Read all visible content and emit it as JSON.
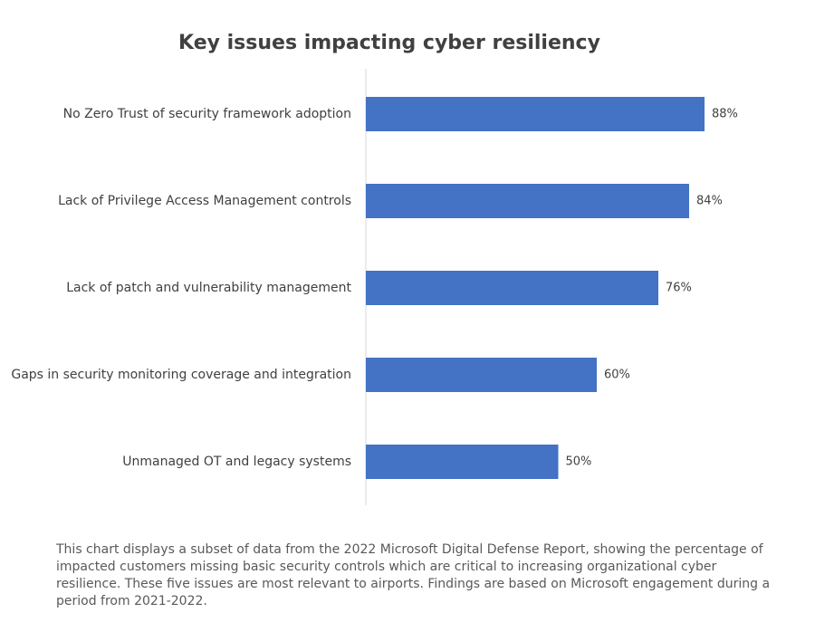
{
  "chart_data": {
    "type": "bar",
    "orientation": "horizontal",
    "title": "Key issues impacting cyber resiliency",
    "categories": [
      "No Zero Trust of security framework adoption",
      "Lack of Privilege Access Management controls",
      "Lack of patch and vulnerability management",
      "Gaps in security monitoring coverage and integration",
      "Unmanaged OT and legacy systems"
    ],
    "values": [
      88,
      84,
      76,
      60,
      50
    ],
    "value_labels": [
      "88%",
      "84%",
      "76%",
      "60%",
      "50%"
    ],
    "color": "#4472c4",
    "caption": "This chart displays a subset of data from the 2022 Microsoft Digital Defense Report, showing the percentage of impacted customers missing basic security controls which are critical to increasing organizational cyber resilience. These five issues are most relevant to airports. Findings are based on Microsoft engagement during a period from 2021-2022."
  }
}
